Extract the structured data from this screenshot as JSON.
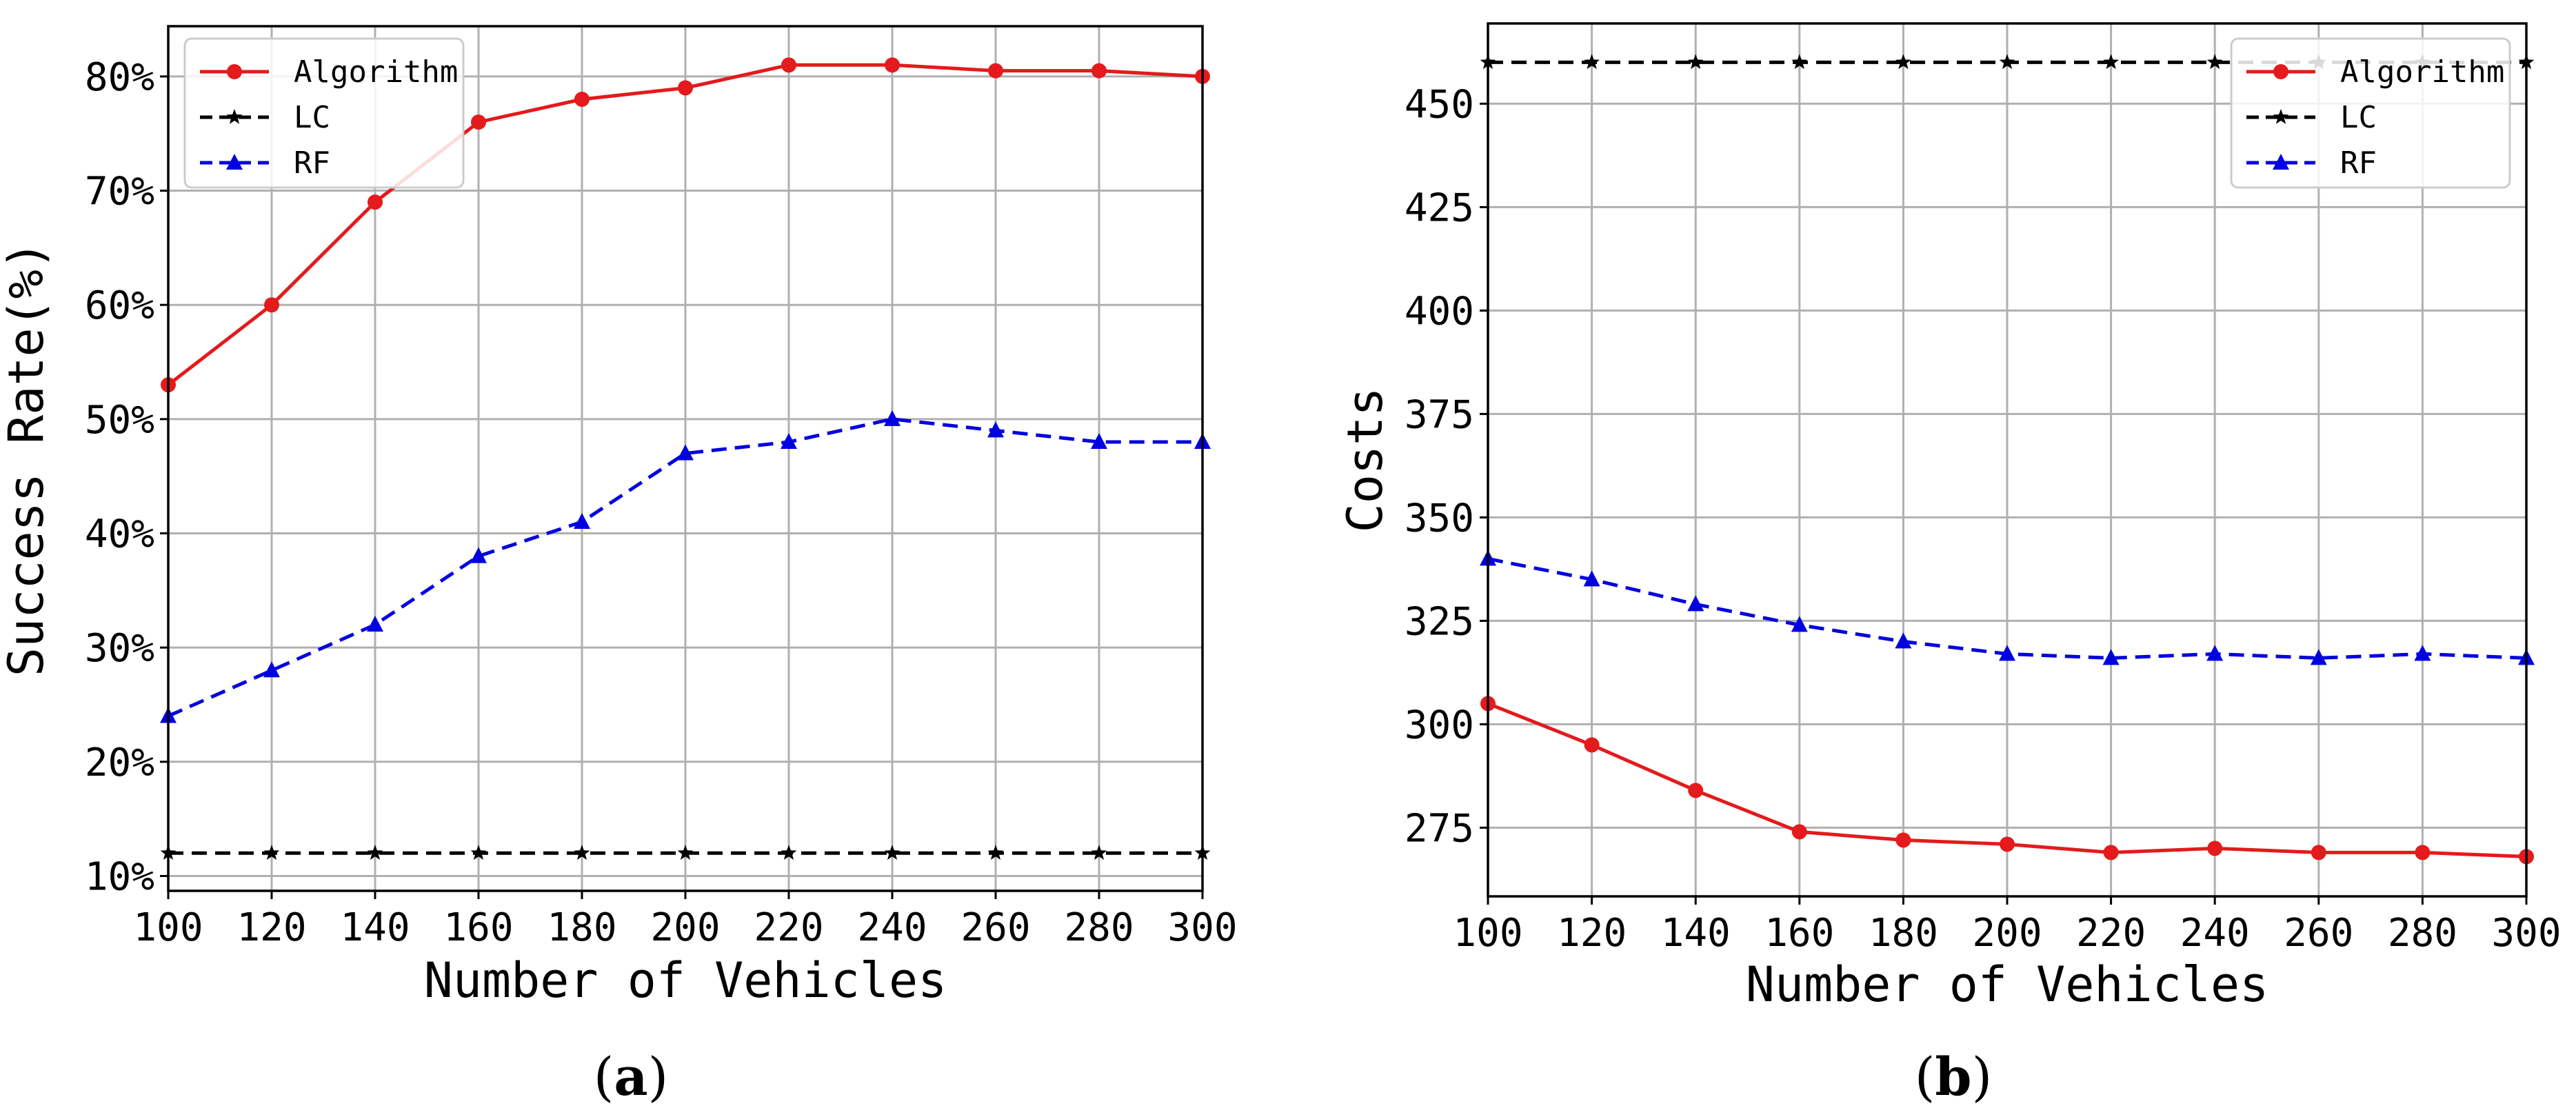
{
  "colors": {
    "algorithm": "#e41a1c",
    "lc": "#000000",
    "rf": "#0000e0",
    "grid": "#b0b0b0"
  },
  "chart_data": [
    {
      "id": "a",
      "type": "line",
      "panel_label": "a",
      "xlabel": "Number of Vehicles",
      "ylabel": "Success Rate(%)",
      "xlim": [
        100,
        300
      ],
      "ylim": [
        8.7,
        84.4
      ],
      "x": [
        100,
        120,
        140,
        160,
        180,
        200,
        220,
        240,
        260,
        280,
        300
      ],
      "xticks": [
        100,
        120,
        140,
        160,
        180,
        200,
        220,
        240,
        260,
        280,
        300
      ],
      "yticks": [
        10,
        20,
        30,
        40,
        50,
        60,
        70,
        80
      ],
      "ytick_labels": [
        "10%",
        "20%",
        "30%",
        "40%",
        "50%",
        "60%",
        "70%",
        "80%"
      ],
      "grid": true,
      "legend_position": "top-left",
      "series": [
        {
          "name": "Algorithm",
          "key": "algorithm",
          "marker": "circle",
          "dash": "solid",
          "values": [
            53,
            60,
            69,
            76,
            78,
            79,
            81,
            81,
            80.5,
            80.5,
            80
          ]
        },
        {
          "name": "LC",
          "key": "lc",
          "marker": "star",
          "dash": "dashed",
          "values": [
            12,
            12,
            12,
            12,
            12,
            12,
            12,
            12,
            12,
            12,
            12
          ]
        },
        {
          "name": "RF",
          "key": "rf",
          "marker": "triangle",
          "dash": "dashed",
          "values": [
            24,
            28,
            32,
            38,
            41,
            47,
            48,
            50,
            49,
            48,
            48
          ]
        }
      ]
    },
    {
      "id": "b",
      "type": "line",
      "panel_label": "b",
      "xlabel": "Number of Vehicles",
      "ylabel": "Costs",
      "xlim": [
        100,
        300
      ],
      "ylim": [
        258.4,
        469.4
      ],
      "x": [
        100,
        120,
        140,
        160,
        180,
        200,
        220,
        240,
        260,
        280,
        300
      ],
      "xticks": [
        100,
        120,
        140,
        160,
        180,
        200,
        220,
        240,
        260,
        280,
        300
      ],
      "yticks": [
        275,
        300,
        325,
        350,
        375,
        400,
        425,
        450
      ],
      "ytick_labels": [
        "275",
        "300",
        "325",
        "350",
        "375",
        "400",
        "425",
        "450"
      ],
      "grid": true,
      "legend_position": "top-right",
      "series": [
        {
          "name": "Algorithm",
          "key": "algorithm",
          "marker": "circle",
          "dash": "solid",
          "values": [
            305,
            295,
            284,
            274,
            272,
            271,
            269,
            270,
            269,
            269,
            268
          ]
        },
        {
          "name": "LC",
          "key": "lc",
          "marker": "star",
          "dash": "dashed",
          "values": [
            460,
            460,
            460,
            460,
            460,
            460,
            460,
            460,
            460,
            460,
            460
          ]
        },
        {
          "name": "RF",
          "key": "rf",
          "marker": "triangle",
          "dash": "dashed",
          "values": [
            340,
            335,
            329,
            324,
            320,
            317,
            316,
            317,
            316,
            317,
            316
          ]
        }
      ]
    }
  ]
}
